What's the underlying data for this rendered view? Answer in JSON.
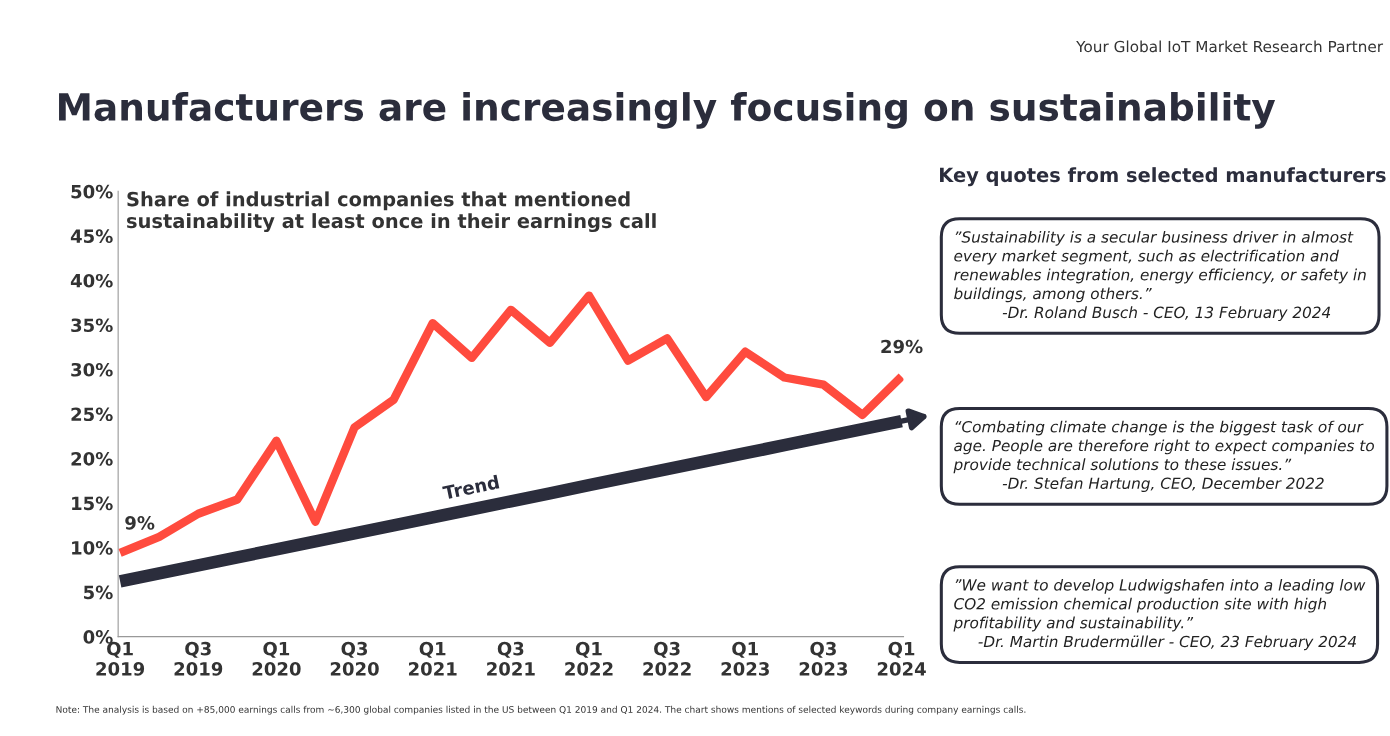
{
  "chart_data": {
    "type": "line",
    "title": "Manufacturers are increasingly focusing on sustainability",
    "subtitle": "Share of industrial companies that mentioned\nsustainability at least once in their earnings call",
    "categories": [
      "Q1\n2019",
      null,
      "Q3\n2019",
      null,
      "Q1\n2020",
      null,
      "Q3\n2020",
      null,
      "Q1\n2021",
      null,
      "Q3\n2021",
      null,
      "Q1\n2022",
      null,
      "Q3\n2022",
      null,
      "Q1\n2023",
      null,
      "Q3\n2023",
      null,
      "Q1\n2024"
    ],
    "series": [
      {
        "color": "#ff4b3e",
        "values": [
          9.4,
          11.2,
          13.8,
          15.4,
          22.0,
          12.9,
          23.5,
          26.6,
          35.2,
          31.3,
          36.7,
          33.0,
          38.3,
          31.0,
          33.5,
          26.9,
          32.0,
          29.1,
          28.3,
          24.9,
          29.2
        ],
        "value_labels": [
          "9%",
          null,
          null,
          null,
          null,
          null,
          null,
          null,
          null,
          null,
          null,
          null,
          null,
          null,
          null,
          null,
          null,
          null,
          null,
          null,
          "29%"
        ]
      },
      {
        "name": "Trend",
        "color": "#2b2d3c",
        "values": [
          6.2,
          7.1,
          8.0,
          8.9,
          9.8,
          10.7,
          11.6,
          12.5,
          13.4,
          14.3,
          15.2,
          16.1,
          17.0,
          17.9,
          18.8,
          19.7,
          20.6,
          21.5,
          22.4,
          23.3,
          24.2
        ]
      }
    ],
    "ylim": [
      0,
      50
    ],
    "yticks": [
      {
        "value": 0,
        "label": "0%"
      },
      {
        "value": 5,
        "label": "5%"
      },
      {
        "value": 10,
        "label": "10%"
      },
      {
        "value": 15,
        "label": "15%"
      },
      {
        "value": 20,
        "label": "20%"
      },
      {
        "value": 25,
        "label": "25%"
      },
      {
        "value": 30,
        "label": "30%"
      },
      {
        "value": 35,
        "label": "35%"
      },
      {
        "value": 40,
        "label": "40%"
      },
      {
        "value": 45,
        "label": "45%"
      },
      {
        "value": 50,
        "label": "50%"
      }
    ],
    "grid": false,
    "legend": false,
    "annotations": [
      "Your Global IoT Market Research Partner",
      "Key quotes from selected manufacturers",
      "”Sustainability is a secular business driver in almost\nevery market segment, such as electrification and\nrenewables integration, energy efficiency, or safety in\nbuildings, among others.”\n          -Dr. Roland Busch - CEO, 13 February 2024",
      "“Combating climate change is the biggest task of our\nage. People are therefore right to expect companies to\nprovide technical solutions to these issues.”\n          -Dr. Stefan Hartung, CEO, December 2022",
      "”We want to develop Ludwigshafen into a leading low\nCO2 emission chemical production site with high\nprofitability and sustainability.”\n     -Dr. Martin Brudermüller - CEO, 23 February 2024",
      "Note: The analysis is based on +85,000 earnings calls from ~6,300 global companies listed in the US between Q1 2019 and Q1 2024. The chart shows mentions of selected keywords during company earnings calls."
    ]
  }
}
